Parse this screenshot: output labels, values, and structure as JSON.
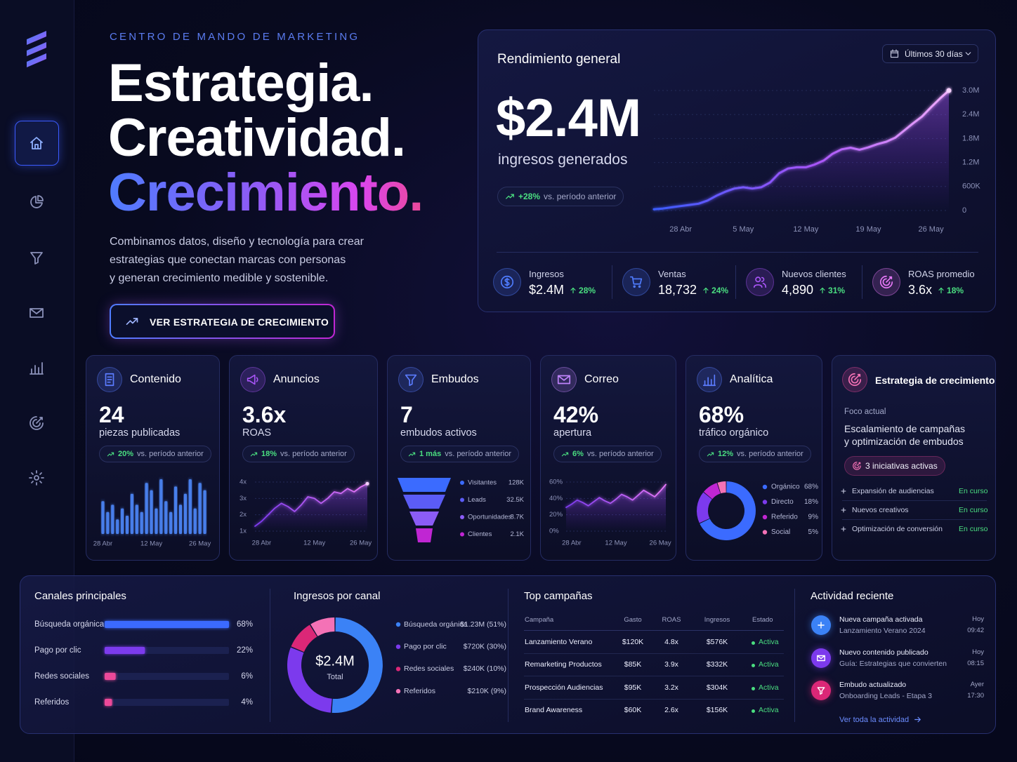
{
  "hero": {
    "eyebrow": "CENTRO DE MANDO DE MARKETING",
    "lines": [
      "Estrategia.",
      "Creatividad.",
      "Crecimiento."
    ],
    "description": [
      "Combinamos datos, diseño y tecnología para crear",
      "estrategias que conectan marcas con personas",
      "y generan crecimiento medible y sostenible."
    ],
    "button": "VER ESTRATEGIA DE CRECIMIENTO"
  },
  "overview": {
    "title": "Rendimiento general",
    "period": "Últimos 30 días",
    "value": "$2.4M",
    "caption": "ingresos generados",
    "delta": "+28%",
    "delta_note": "vs. período anterior",
    "chart": {
      "type": "line",
      "categories": [
        null,
        null,
        null,
        "28 Abr",
        null,
        null,
        null,
        null,
        null,
        null,
        "5 May",
        null,
        null,
        null,
        null,
        null,
        null,
        "12 May",
        null,
        null,
        null,
        null,
        null,
        null,
        "19 May",
        null,
        null,
        null,
        null,
        null,
        null,
        "26 May",
        null,
        null
      ],
      "values": [
        30000,
        50000,
        80000,
        110000,
        140000,
        170000,
        250000,
        370000,
        470000,
        550000,
        580000,
        550000,
        580000,
        700000,
        930000,
        1050000,
        1080000,
        1080000,
        1150000,
        1250000,
        1420000,
        1530000,
        1570000,
        1520000,
        1580000,
        1660000,
        1720000,
        1820000,
        2000000,
        2180000,
        2350000,
        2580000,
        2800000,
        3000000
      ],
      "ylim": [
        0,
        3000000
      ],
      "yticks": [
        0,
        {
          "value": 600000,
          "label": "600K"
        },
        {
          "value": 1200000,
          "label": "1.2M"
        },
        {
          "value": 1800000,
          "label": "1.8M"
        },
        {
          "value": 2400000,
          "label": "2.4M"
        },
        {
          "value": 3000000,
          "label": "3.0M"
        }
      ],
      "grid": true
    },
    "kpis": [
      {
        "label": "Ingresos",
        "value": "$2.4M",
        "delta": "28%",
        "color": "#4f7cff"
      },
      {
        "label": "Ventas",
        "value": "18,732",
        "delta": "24%",
        "color": "#4f7cff"
      },
      {
        "label": "Nuevos clientes",
        "value": "4,890",
        "delta": "31%",
        "color": "#a855f7"
      },
      {
        "label": "ROAS promedio",
        "value": "3.6x",
        "delta": "18%",
        "color": "#e879f9"
      }
    ]
  },
  "cards": [
    {
      "title": "Contenido",
      "value": "24",
      "caption": "piezas publicadas",
      "delta": "20%",
      "delta_note": "vs. período anterior",
      "color": "#5b7cff",
      "chart": {
        "type": "bar",
        "categories": [
          "28 Abr",
          null,
          null,
          null,
          null,
          null,
          null,
          null,
          null,
          null,
          "12 May",
          null,
          null,
          null,
          null,
          null,
          null,
          null,
          null,
          null,
          "26 May",
          null
        ],
        "values": [
          45,
          30,
          40,
          20,
          35,
          25,
          55,
          40,
          30,
          70,
          60,
          35,
          75,
          45,
          30,
          65,
          40,
          55,
          75,
          35,
          70,
          60
        ],
        "color": "#4f8bff"
      }
    },
    {
      "title": "Anuncios",
      "value": "3.6x",
      "caption": "ROAS",
      "delta": "18%",
      "delta_note": "vs. período anterior",
      "color": "#a855f7",
      "chart": {
        "type": "line",
        "categories": [
          null,
          "28 Abr",
          null,
          null,
          null,
          null,
          null,
          null,
          null,
          "12 May",
          null,
          null,
          null,
          null,
          null,
          null,
          "26 May",
          null
        ],
        "values": [
          1.3,
          1.6,
          2.0,
          2.4,
          2.7,
          2.5,
          2.2,
          2.6,
          3.1,
          3.0,
          2.7,
          3.0,
          3.4,
          3.3,
          3.6,
          3.4,
          3.7,
          3.9
        ],
        "ylim": [
          1,
          4
        ],
        "yticks": [
          {
            "value": 1,
            "label": "1x"
          },
          {
            "value": 2,
            "label": "2x"
          },
          {
            "value": 3,
            "label": "3x"
          },
          {
            "value": 4,
            "label": "4x"
          }
        ]
      }
    },
    {
      "title": "Embudos",
      "value": "7",
      "caption": "embudos activos",
      "delta": "1 más",
      "delta_note": "vs. período anterior",
      "color": "#5b7cff",
      "chart": {
        "type": "funnel",
        "categories": [
          "Visitantes",
          "Leads",
          "Oportunidades",
          "Clientes"
        ],
        "values": [
          128000,
          32500,
          8700,
          2100
        ],
        "value_labels": [
          "128K",
          "32.5K",
          "8.7K",
          "2.1K"
        ],
        "colors": [
          "#3b6bff",
          "#5b5cf6",
          "#8b5cf6",
          "#c026d3"
        ]
      }
    },
    {
      "title": "Correo",
      "value": "42%",
      "caption": "apertura",
      "delta": "6%",
      "delta_note": "vs. período anterior",
      "color": "#c084fc",
      "chart": {
        "type": "line",
        "categories": [
          null,
          "28 Abr",
          null,
          null,
          null,
          null,
          null,
          null,
          null,
          "12 May",
          null,
          null,
          null,
          null,
          null,
          null,
          null,
          "26 May",
          null
        ],
        "values": [
          29,
          33,
          38,
          35,
          31,
          36,
          41,
          37,
          34,
          39,
          45,
          42,
          38,
          44,
          50,
          46,
          42,
          49,
          57
        ],
        "ylim": [
          0,
          60
        ],
        "yticks": [
          {
            "value": 0,
            "label": "0%"
          },
          {
            "value": 20,
            "label": "20%"
          },
          {
            "value": 40,
            "label": "40%"
          },
          {
            "value": 60,
            "label": "60%"
          }
        ]
      }
    },
    {
      "title": "Analítica",
      "value": "68%",
      "caption": "tráfico orgánico",
      "delta": "12%",
      "delta_note": "vs. período anterior",
      "color": "#5b7cff",
      "chart": {
        "type": "donut",
        "categories": [
          "Orgánico",
          "Directo",
          "Referido",
          "Social"
        ],
        "values": [
          68,
          18,
          9,
          5
        ],
        "value_labels": [
          "68%",
          "18%",
          "9%",
          "5%"
        ],
        "colors": [
          "#3b6bff",
          "#7c3aed",
          "#c026d3",
          "#f472b6"
        ]
      }
    }
  ],
  "strategy": {
    "title": "Estrategia de crecimiento",
    "focus_label": "Foco actual",
    "focus": [
      "Escalamiento de campañas",
      "y optimización de embudos"
    ],
    "badge": "3 iniciativas activas",
    "items": [
      {
        "name": "Expansión de audiencias",
        "status": "En curso"
      },
      {
        "name": "Nuevos creativos",
        "status": "En curso"
      },
      {
        "name": "Optimización de conversión",
        "status": "En curso"
      }
    ]
  },
  "bottom": {
    "channels": {
      "title": "Canales principales",
      "chart": {
        "type": "hbar",
        "categories": [
          "Búsqueda orgánica",
          "Pago por clic",
          "Redes sociales",
          "Referidos"
        ],
        "values": [
          68,
          22,
          6,
          4
        ],
        "value_labels": [
          "68%",
          "22%",
          "6%",
          "4%"
        ],
        "colors": [
          "#3b6bff",
          "#7c3aed",
          "#ec4899",
          "#ec4899"
        ]
      }
    },
    "revenue": {
      "title": "Ingresos por canal",
      "total": "$2.4M",
      "total_label": "Total",
      "chart": {
        "type": "donut",
        "categories": [
          "Búsqueda orgánica",
          "Pago por clic",
          "Redes sociales",
          "Referidos"
        ],
        "values": [
          1230000,
          720000,
          240000,
          210000
        ],
        "value_labels": [
          "$1.23M (51%)",
          "$720K (30%)",
          "$240K (10%)",
          "$210K (9%)"
        ],
        "colors": [
          "#3b82f6",
          "#7c3aed",
          "#db2777",
          "#f472b6"
        ]
      }
    },
    "campaigns": {
      "title": "Top campañas",
      "columns": [
        "Campaña",
        "Gasto",
        "ROAS",
        "Ingresos",
        "Estado"
      ],
      "rows": [
        [
          "Lanzamiento Verano",
          "$120K",
          "4.8x",
          "$576K",
          "Activa"
        ],
        [
          "Remarketing Productos",
          "$85K",
          "3.9x",
          "$332K",
          "Activa"
        ],
        [
          "Prospección Audiencias",
          "$95K",
          "3.2x",
          "$304K",
          "Activa"
        ],
        [
          "Brand Awareness",
          "$60K",
          "2.6x",
          "$156K",
          "Activa"
        ]
      ]
    },
    "activity": {
      "title": "Actividad reciente",
      "items": [
        {
          "title": "Nueva campaña activada",
          "detail": "Lanzamiento Verano 2024",
          "day": "Hoy",
          "time": "09:42",
          "color": "#3b82f6"
        },
        {
          "title": "Nuevo contenido publicado",
          "detail": "Guía: Estrategias que convierten",
          "day": "Hoy",
          "time": "08:15",
          "color": "#7c3aed"
        },
        {
          "title": "Embudo actualizado",
          "detail": "Onboarding Leads - Etapa 3",
          "day": "Ayer",
          "time": "17:30",
          "color": "#db2777"
        }
      ],
      "link": "Ver toda la actividad"
    }
  }
}
